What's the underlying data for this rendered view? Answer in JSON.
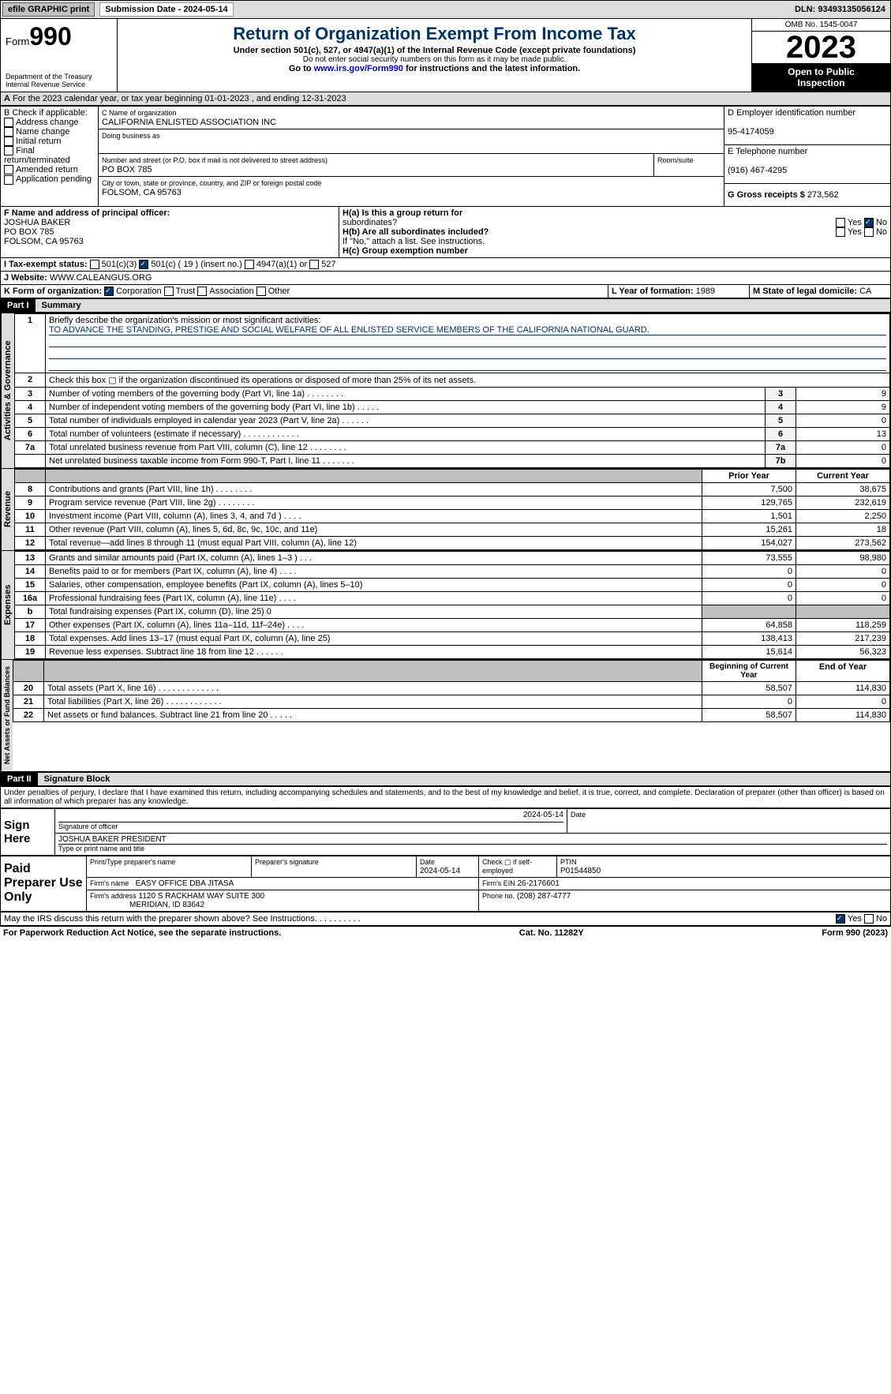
{
  "top": {
    "efile": "efile GRAPHIC print",
    "submission": "Submission Date - 2024-05-14",
    "dln": "DLN: 93493135056124"
  },
  "header": {
    "form": "Form",
    "num": "990",
    "dept_lines": [
      "Department of the Treasury",
      "Internal Revenue Service"
    ],
    "title": "Return of Organization Exempt From Income Tax",
    "sub": "Under section 501(c), 527, or 4947(a)(1) of the Internal Revenue Code (except private foundations)",
    "nossn": "Do not enter social security numbers on this form as it may be made public.",
    "goto": "Go to ",
    "link": "www.irs.gov/Form990",
    "goto2": " for instructions and the latest information.",
    "omb": "OMB No. 1545-0047",
    "year": "2023",
    "inspect1": "Open to Public",
    "inspect2": "Inspection"
  },
  "A": {
    "text": "For the 2023 calendar year, or tax year beginning 01-01-2023   , and ending 12-31-2023"
  },
  "B": {
    "label": "B Check if applicable:",
    "items": [
      "Address change",
      "Name change",
      "Initial return",
      "Final return/terminated",
      "Amended return",
      "Application pending"
    ]
  },
  "C": {
    "name_lbl": "C Name of organization",
    "name": "CALIFORNIA ENLISTED ASSOCIATION INC",
    "dba_lbl": "Doing business as",
    "street_lbl": "Number and street (or P.O. box if mail is not delivered to street address)",
    "street": "PO BOX 785",
    "room_lbl": "Room/suite",
    "city_lbl": "City or town, state or province, country, and ZIP or foreign postal code",
    "city": "FOLSOM, CA  95763"
  },
  "D": {
    "lbl": "D Employer identification number",
    "val": "95-4174059"
  },
  "E": {
    "lbl": "E Telephone number",
    "val": "(916) 467-4295"
  },
  "G": {
    "lbl": "G Gross receipts $",
    "val": "273,562"
  },
  "F": {
    "lbl": "F  Name and address of principal officer:",
    "lines": [
      "JOSHUA BAKER",
      "PO BOX 785",
      "FOLSOM, CA  95763"
    ]
  },
  "H": {
    "a": "H(a)  Is this a group return for",
    "a2": "subordinates?",
    "b": "H(b)  Are all subordinates included?",
    "bnote": "If \"No,\" attach a list. See instructions.",
    "c": "H(c)  Group exemption number",
    "yes": "Yes",
    "no": "No"
  },
  "I": {
    "lbl": "I   Tax-exempt status:",
    "c3": "501(c)(3)",
    "c": "501(c) ( 19 ) (insert no.)",
    "c4947": "4947(a)(1) or",
    "c527": "527"
  },
  "J": {
    "lbl": "J   Website:",
    "val": "  WWW.CALEANGUS.ORG"
  },
  "K": {
    "lbl": "K Form of organization:",
    "corp": "Corporation",
    "trust": "Trust",
    "assoc": "Association",
    "other": "Other"
  },
  "L": {
    "lbl": "L Year of formation:",
    "val": "1989"
  },
  "M": {
    "lbl": "M State of legal domicile:",
    "val": "CA"
  },
  "part1": {
    "hdr": "Part I",
    "title": "Summary"
  },
  "summary": {
    "q1": "Briefly describe the organization's mission or most significant activities:",
    "mission": "TO ADVANCE THE STANDING, PRESTIGE AND SOCIAL WELFARE OF ALL ENLISTED SERVICE MEMBERS OF THE CALIFORNIA NATIONAL GUARD.",
    "q2": "Check this box ▢ if the organization discontinued its operations or disposed of more than 25% of its net assets.",
    "rows_gov": [
      {
        "n": "3",
        "t": "Number of voting members of the governing body (Part VI, line 1a)  .   .   .   .   .   .   .   .",
        "box": "3",
        "v": "9"
      },
      {
        "n": "4",
        "t": "Number of independent voting members of the governing body (Part VI, line 1b)  .   .   .   .   .",
        "box": "4",
        "v": "9"
      },
      {
        "n": "5",
        "t": "Total number of individuals employed in calendar year 2023 (Part V, line 2a)  .   .   .   .   .   .",
        "box": "5",
        "v": "0"
      },
      {
        "n": "6",
        "t": "Total number of volunteers (estimate if necessary)  .   .   .   .   .   .   .   .   .   .   .   .",
        "box": "6",
        "v": "13"
      },
      {
        "n": "7a",
        "t": "Total unrelated business revenue from Part VIII, column (C), line 12  .   .   .   .   .   .   .   .",
        "box": "7a",
        "v": "0"
      },
      {
        "n": "",
        "t": "Net unrelated business taxable income from Form 990-T, Part I, line 11  .   .   .   .   .   .   .",
        "box": "7b",
        "v": "0"
      }
    ],
    "hdr_prior": "Prior Year",
    "hdr_curr": "Current Year",
    "rows_rev": [
      {
        "n": "8",
        "t": "Contributions and grants (Part VIII, line 1h)  .   .   .   .   .   .   .   .",
        "p": "7,500",
        "c": "38,675"
      },
      {
        "n": "9",
        "t": "Program service revenue (Part VIII, line 2g)   .   .   .   .   .   .   .   .",
        "p": "129,765",
        "c": "232,619"
      },
      {
        "n": "10",
        "t": "Investment income (Part VIII, column (A), lines 3, 4, and 7d )  .   .   .   .",
        "p": "1,501",
        "c": "2,250"
      },
      {
        "n": "11",
        "t": "Other revenue (Part VIII, column (A), lines 5, 6d, 8c, 9c, 10c, and 11e)",
        "p": "15,261",
        "c": "18"
      },
      {
        "n": "12",
        "t": "Total revenue—add lines 8 through 11 (must equal Part VIII, column (A), line 12)",
        "p": "154,027",
        "c": "273,562"
      }
    ],
    "rows_exp": [
      {
        "n": "13",
        "t": "Grants and similar amounts paid (Part IX, column (A), lines 1–3 )  .   .   .",
        "p": "73,555",
        "c": "98,980"
      },
      {
        "n": "14",
        "t": "Benefits paid to or for members (Part IX, column (A), line 4)  .   .   .   .",
        "p": "0",
        "c": "0"
      },
      {
        "n": "15",
        "t": "Salaries, other compensation, employee benefits (Part IX, column (A), lines 5–10)",
        "p": "0",
        "c": "0"
      },
      {
        "n": "16a",
        "t": "Professional fundraising fees (Part IX, column (A), line 11e)  .   .   .   .",
        "p": "0",
        "c": "0"
      },
      {
        "n": "b",
        "t": "Total fundraising expenses (Part IX, column (D), line 25) 0",
        "p": "",
        "c": "",
        "shade": true
      },
      {
        "n": "17",
        "t": "Other expenses (Part IX, column (A), lines 11a–11d, 11f–24e)  .   .   .   .",
        "p": "64,858",
        "c": "118,259"
      },
      {
        "n": "18",
        "t": "Total expenses. Add lines 13–17 (must equal Part IX, column (A), line 25)",
        "p": "138,413",
        "c": "217,239"
      },
      {
        "n": "19",
        "t": "Revenue less expenses. Subtract line 18 from line 12  .   .   .   .   .   .",
        "p": "15,614",
        "c": "56,323"
      }
    ],
    "hdr_beg": "Beginning of Current Year",
    "hdr_end": "End of Year",
    "rows_net": [
      {
        "n": "20",
        "t": "Total assets (Part X, line 16)  .   .   .   .   .   .   .   .   .   .   .   .   .",
        "p": "58,507",
        "c": "114,830"
      },
      {
        "n": "21",
        "t": "Total liabilities (Part X, line 26)  .   .   .   .   .   .   .   .   .   .   .   .",
        "p": "0",
        "c": "0"
      },
      {
        "n": "22",
        "t": "Net assets or fund balances. Subtract line 21 from line 20  .   .   .   .   .",
        "p": "58,507",
        "c": "114,830"
      }
    ]
  },
  "vlabels": {
    "gov": "Activities & Governance",
    "rev": "Revenue",
    "exp": "Expenses",
    "net": "Net Assets or Fund Balances"
  },
  "part2": {
    "hdr": "Part II",
    "title": "Signature Block",
    "decl": "Under penalties of perjury, I declare that I have examined this return, including accompanying schedules and statements, and to the best of my knowledge and belief, it is true, correct, and complete. Declaration of preparer (other than officer) is based on all information of which preparer has any knowledge."
  },
  "sign": {
    "here_lbl": "Sign Here",
    "sig_lbl": "Signature of officer",
    "date_lbl": "Date",
    "officer": "JOSHUA BAKER  PRESIDENT",
    "type_lbl": "Type or print name and title",
    "date": "2024-05-14"
  },
  "paid": {
    "lbl": "Paid Preparer Use Only",
    "pname_lbl": "Print/Type preparer's name",
    "psig_lbl": "Preparer's signature",
    "pdate_lbl": "Date",
    "pdate": "2024-05-14",
    "check_lbl": "Check ▢ if self-employed",
    "ptin_lbl": "PTIN",
    "ptin": "P01544850",
    "firm_lbl": "Firm's name",
    "firm": "EASY OFFICE DBA JITASA",
    "ein_lbl": "Firm's EIN",
    "ein": "26-2176601",
    "addr_lbl": "Firm's address",
    "addr1": "1120 S RACKHAM WAY SUITE 300",
    "addr2": "MERIDIAN, ID  83642",
    "phone_lbl": "Phone no.",
    "phone": "(208) 287-4777"
  },
  "discuss": {
    "q": "May the IRS discuss this return with the preparer shown above? See Instructions.  .   .   .   .   .   .   .   .   .",
    "yes": "Yes",
    "no": "No"
  },
  "footer": {
    "pra": "For Paperwork Reduction Act Notice, see the separate instructions.",
    "cat": "Cat. No. 11282Y",
    "form": "Form 990 (2023)"
  }
}
